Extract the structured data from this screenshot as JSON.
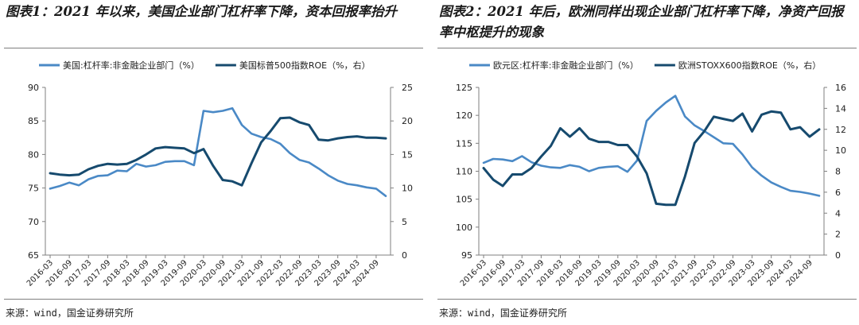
{
  "charts": [
    {
      "title": "图表1：2021 年以来，美国企业部门杠杆率下降，资本回报率抬升",
      "source": "来源：wind，国金证券研究所",
      "colors": {
        "left": "#4a89c6",
        "right": "#164a6e"
      },
      "chart_data": {
        "type": "line",
        "x": [
          "2016-03",
          "2016-06",
          "2016-09",
          "2016-12",
          "2017-03",
          "2017-06",
          "2017-09",
          "2017-12",
          "2018-03",
          "2018-06",
          "2018-09",
          "2018-12",
          "2019-03",
          "2019-06",
          "2019-09",
          "2019-12",
          "2020-03",
          "2020-06",
          "2020-09",
          "2020-12",
          "2021-03",
          "2021-06",
          "2021-09",
          "2021-12",
          "2022-03",
          "2022-06",
          "2022-09",
          "2022-12",
          "2023-03",
          "2023-06",
          "2023-09",
          "2023-12",
          "2024-03",
          "2024-06",
          "2024-09",
          "2024-12"
        ],
        "xticks": [
          "2016-03",
          "2016-09",
          "2017-03",
          "2017-09",
          "2018-03",
          "2018-09",
          "2019-03",
          "2019-09",
          "2020-03",
          "2020-09",
          "2021-03",
          "2021-09",
          "2022-03",
          "2022-09",
          "2023-03",
          "2023-09",
          "2024-03",
          "2024-09"
        ],
        "series": [
          {
            "name": "美国:杠杆率:非金融企业部门（%）",
            "axis": "left",
            "values": [
              74.9,
              75.3,
              75.8,
              75.4,
              76.3,
              76.8,
              76.9,
              77.6,
              77.5,
              78.6,
              78.2,
              78.4,
              78.9,
              79.0,
              79.0,
              78.4,
              86.5,
              86.3,
              86.5,
              86.9,
              84.4,
              83.1,
              82.6,
              82.3,
              81.6,
              80.2,
              79.2,
              78.8,
              77.9,
              76.9,
              76.1,
              75.6,
              75.4,
              75.1,
              74.9,
              73.8
            ]
          },
          {
            "name": "美国标普500指数ROE（%，右）",
            "axis": "right",
            "values": [
              12.2,
              12.0,
              11.9,
              12.0,
              12.8,
              13.3,
              13.6,
              13.5,
              13.6,
              14.2,
              15.0,
              15.9,
              16.1,
              16.0,
              15.9,
              15.2,
              15.8,
              13.3,
              11.2,
              11.0,
              10.4,
              13.7,
              16.8,
              18.5,
              20.4,
              20.5,
              19.8,
              19.4,
              17.2,
              17.1,
              17.4,
              17.6,
              17.7,
              17.5,
              17.5,
              17.4
            ]
          }
        ],
        "yleft": {
          "min": 65,
          "max": 90,
          "ticks": [
            65,
            70,
            75,
            80,
            85,
            90
          ]
        },
        "yright": {
          "min": 0,
          "max": 25,
          "ticks": [
            0,
            5,
            10,
            15,
            20,
            25
          ]
        },
        "legend_position": "top"
      }
    },
    {
      "title": "图表2：2021 年后，欧洲同样出现企业部门杠杆率下降，净资产回报率中枢提升的现象",
      "source": "来源：wind，国金证券研究所",
      "colors": {
        "left": "#4a89c6",
        "right": "#164a6e"
      },
      "chart_data": {
        "type": "line",
        "x": [
          "2016-03",
          "2016-06",
          "2016-09",
          "2016-12",
          "2017-03",
          "2017-06",
          "2017-09",
          "2017-12",
          "2018-03",
          "2018-06",
          "2018-09",
          "2018-12",
          "2019-03",
          "2019-06",
          "2019-09",
          "2019-12",
          "2020-03",
          "2020-06",
          "2020-09",
          "2020-12",
          "2021-03",
          "2021-06",
          "2021-09",
          "2021-12",
          "2022-03",
          "2022-06",
          "2022-09",
          "2022-12",
          "2023-03",
          "2023-06",
          "2023-09",
          "2023-12",
          "2024-03",
          "2024-06",
          "2024-09",
          "2024-12"
        ],
        "xticks": [
          "2016-03",
          "2016-09",
          "2017-03",
          "2017-09",
          "2018-03",
          "2018-09",
          "2019-03",
          "2019-09",
          "2020-03",
          "2020-09",
          "2021-03",
          "2021-09",
          "2022-03",
          "2022-09",
          "2023-03",
          "2023-09",
          "2024-03",
          "2024-09"
        ],
        "series": [
          {
            "name": "欧元区:杠杆率:非金融企业部门（%）",
            "axis": "left",
            "values": [
              111.5,
              112.2,
              112.1,
              111.8,
              112.7,
              111.6,
              111.0,
              110.7,
              110.6,
              111.1,
              110.8,
              110.0,
              110.6,
              110.8,
              110.9,
              109.9,
              111.9,
              119.0,
              120.8,
              122.3,
              123.5,
              119.8,
              118.2,
              117.2,
              116.1,
              115.0,
              114.9,
              113.0,
              110.7,
              109.2,
              108.0,
              107.2,
              106.5,
              106.3,
              106.0,
              105.6
            ]
          },
          {
            "name": "欧洲STOXX600指数ROE（%，右）",
            "axis": "right",
            "values": [
              8.3,
              7.2,
              6.6,
              7.7,
              7.7,
              8.3,
              9.4,
              10.4,
              12.1,
              11.3,
              12.1,
              11.1,
              10.8,
              10.8,
              10.5,
              10.5,
              9.4,
              7.8,
              4.9,
              4.8,
              4.8,
              7.5,
              10.7,
              11.8,
              13.2,
              13.0,
              12.8,
              13.5,
              11.8,
              13.4,
              13.7,
              13.6,
              12.0,
              12.2,
              11.3,
              12.0
            ]
          }
        ],
        "yleft": {
          "min": 95,
          "max": 125,
          "ticks": [
            95,
            100,
            105,
            110,
            115,
            120,
            125
          ]
        },
        "yright": {
          "min": 0,
          "max": 16,
          "ticks": [
            0,
            2,
            4,
            6,
            8,
            10,
            12,
            14,
            16
          ]
        },
        "legend_position": "top"
      }
    }
  ]
}
